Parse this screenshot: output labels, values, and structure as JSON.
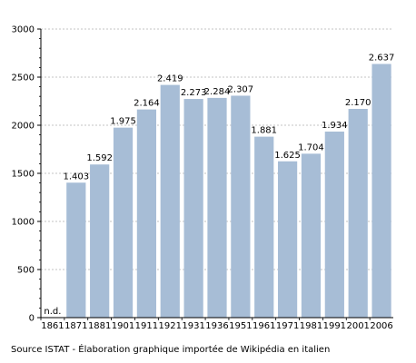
{
  "chart_data": {
    "type": "bar",
    "categories": [
      "1861",
      "1871",
      "1881",
      "1901",
      "1911",
      "1921",
      "1931",
      "1936",
      "1951",
      "1961",
      "1971",
      "1981",
      "1991",
      "2001",
      "2006"
    ],
    "values": [
      null,
      1403,
      1592,
      1975,
      2164,
      2419,
      2273,
      2284,
      2307,
      1881,
      1625,
      1704,
      1934,
      2170,
      2637
    ],
    "data_labels": [
      "n.d.",
      "1.403",
      "1.592",
      "1.975",
      "2.164",
      "2.419",
      "2.273",
      "2.284",
      "2.307",
      "1.881",
      "1.625",
      "1.704",
      "1.934",
      "2.170",
      "2.637"
    ],
    "y_ticks": [
      0,
      500,
      1000,
      1500,
      2000,
      2500,
      3000
    ],
    "ylim": [
      0,
      3000
    ],
    "grid": "horizontal dashed",
    "bar_color": "#a7bdd6",
    "source": "Source ISTAT - Élaboration graphique importée de Wikipédia en italien"
  }
}
